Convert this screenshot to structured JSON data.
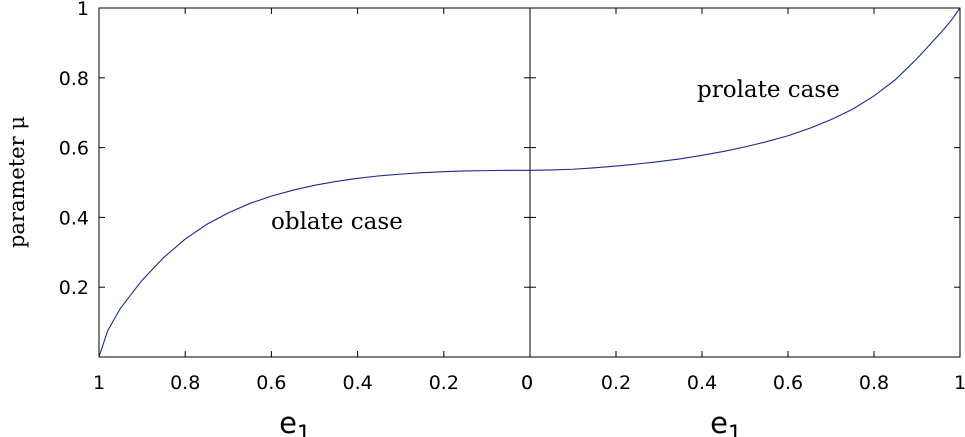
{
  "chart_data": {
    "type": "line",
    "ylabel": "parameter μ",
    "ylim": [
      0,
      1
    ],
    "yticks": [
      "0.2",
      "0.4",
      "0.6",
      "0.8",
      "1"
    ],
    "grid": false,
    "color": "#1c2a8c",
    "panels": [
      {
        "xlabel_main": "e",
        "xlabel_sub": "1",
        "xlim": [
          1,
          0
        ],
        "xticks": [
          "1",
          "0.8",
          "0.6",
          "0.4",
          "0.2",
          "0"
        ],
        "annotation": "oblate case",
        "series": {
          "x": [
            1.0,
            0.98,
            0.95,
            0.9,
            0.85,
            0.8,
            0.75,
            0.7,
            0.65,
            0.6,
            0.55,
            0.5,
            0.45,
            0.4,
            0.35,
            0.3,
            0.25,
            0.2,
            0.15,
            0.1,
            0.05,
            0.0
          ],
          "y": [
            0.0,
            0.075,
            0.14,
            0.22,
            0.285,
            0.338,
            0.38,
            0.413,
            0.44,
            0.461,
            0.478,
            0.492,
            0.503,
            0.512,
            0.519,
            0.524,
            0.528,
            0.531,
            0.533,
            0.534,
            0.535,
            0.535
          ]
        }
      },
      {
        "xlabel_main": "e",
        "xlabel_sub": "1",
        "xlim": [
          0,
          1
        ],
        "xticks": [
          "0",
          "0.2",
          "0.4",
          "0.6",
          "0.8",
          "1"
        ],
        "annotation": "prolate case",
        "series": {
          "x": [
            0.0,
            0.05,
            0.1,
            0.15,
            0.2,
            0.25,
            0.3,
            0.35,
            0.4,
            0.45,
            0.5,
            0.55,
            0.6,
            0.65,
            0.7,
            0.75,
            0.8,
            0.85,
            0.9,
            0.93,
            0.96,
            0.98,
            1.0
          ],
          "y": [
            0.535,
            0.536,
            0.538,
            0.542,
            0.547,
            0.553,
            0.56,
            0.568,
            0.578,
            0.589,
            0.602,
            0.617,
            0.634,
            0.655,
            0.68,
            0.71,
            0.748,
            0.795,
            0.855,
            0.895,
            0.936,
            0.965,
            1.0
          ]
        }
      }
    ]
  }
}
